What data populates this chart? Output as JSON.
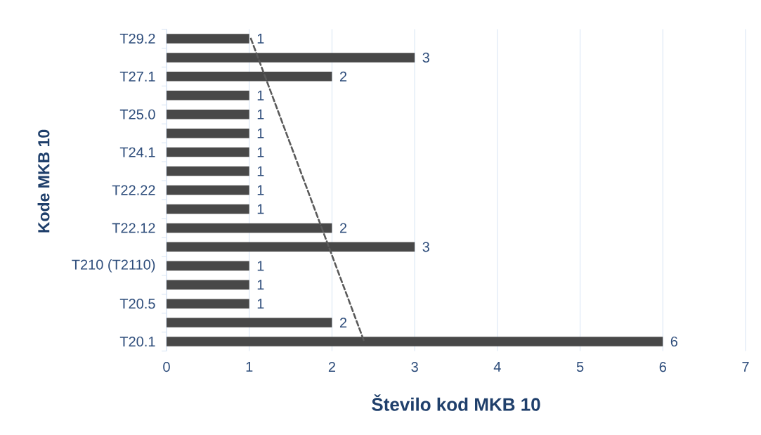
{
  "chart_data": {
    "type": "bar",
    "orientation": "horizontal",
    "xlabel": "Število kod MKB 10",
    "ylabel": "Kode MKB 10",
    "categories": [
      "T29.2",
      null,
      "T27.1",
      null,
      "T25.0",
      null,
      "T24.1",
      null,
      "T22.22",
      null,
      "T22.12",
      null,
      "T210 (T2110)",
      null,
      "T20.5",
      null,
      "T20.1"
    ],
    "series": [
      {
        "color": "#484848",
        "values": [
          1,
          3,
          2,
          1,
          1,
          1,
          1,
          1,
          1,
          1,
          2,
          3,
          1,
          1,
          1,
          2,
          6
        ],
        "value_labels": [
          "1",
          "3",
          "2",
          "1",
          "1",
          "1",
          "1",
          "1",
          "1",
          "1",
          "2",
          "3",
          "1",
          "1",
          "1",
          "2",
          "6"
        ]
      },
      {
        "type": "line",
        "x": [
          "T29.2",
          "T20.1"
        ],
        "values": [
          1.02,
          2.39
        ],
        "color": "#5a5a5a",
        "line_style": "dashed"
      }
    ],
    "xlim": [
      0,
      7
    ],
    "xticks": [
      0,
      1,
      2,
      3,
      4,
      5,
      6,
      7
    ],
    "grid": "x"
  }
}
